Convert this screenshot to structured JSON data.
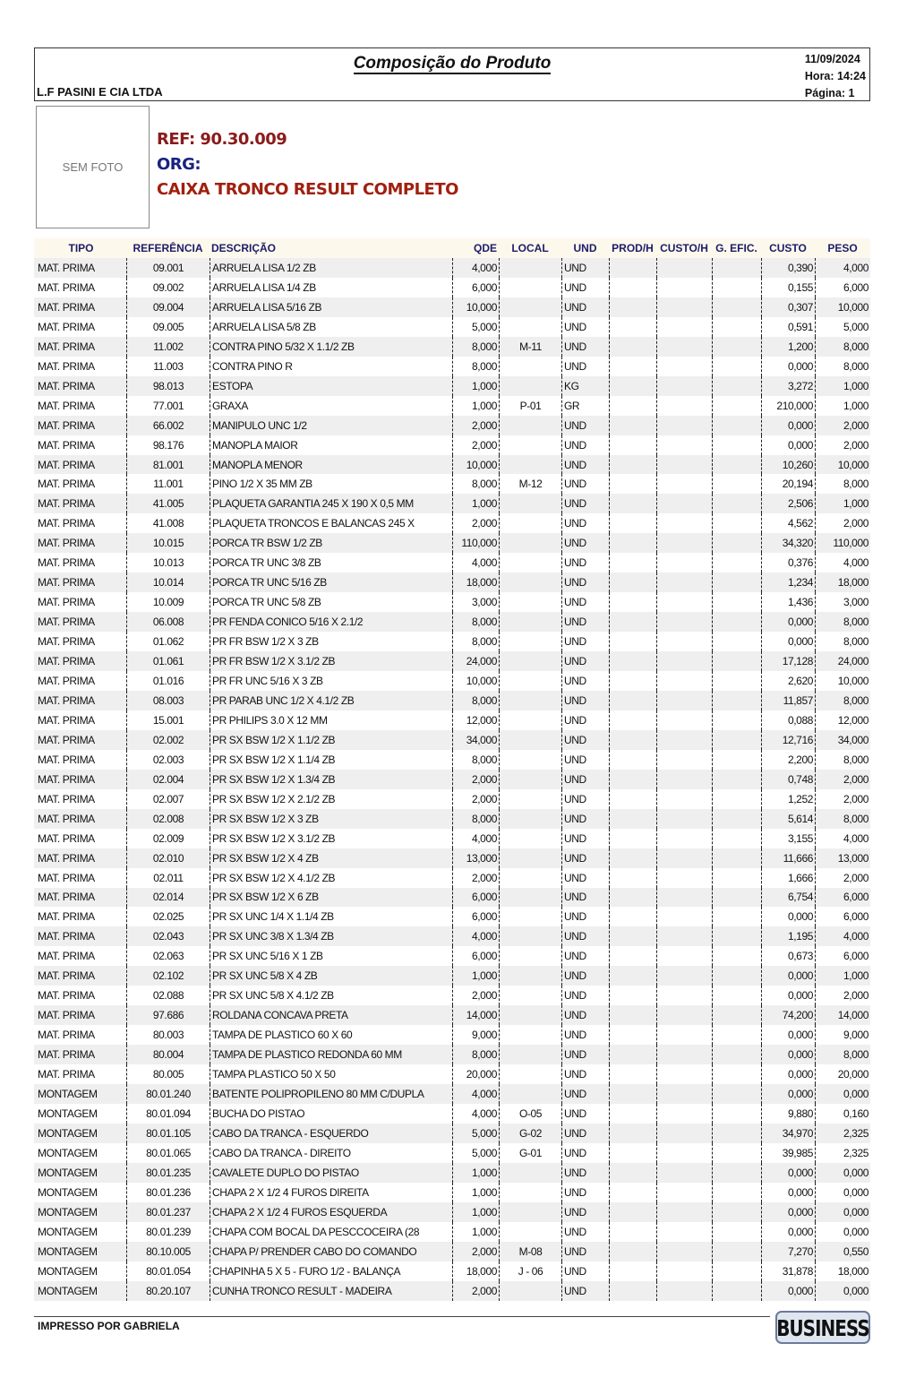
{
  "header": {
    "title": "Composição do Produto",
    "company": "L.F PASINI E CIA LTDA",
    "date": "11/09/2024",
    "time": "Hora: 14:24",
    "page": "Página: 1"
  },
  "product": {
    "photo_placeholder": "SEM FOTO",
    "ref": "REF: 90.30.009",
    "org": "ORG:",
    "name": "CAIXA TRONCO RESULT COMPLETO",
    "colors": {
      "ref": "#8b1a1a",
      "org": "#1a237e",
      "name": "#a0200f"
    }
  },
  "columns": [
    "TIPO",
    "REFERÊNCIA",
    "DESCRIÇÃO",
    "QDE",
    "LOCAL",
    "UND",
    "PROD/H",
    "CUSTO/H",
    "G. EFIC.",
    "CUSTO",
    "PESO"
  ],
  "rows": [
    [
      "MAT. PRIMA",
      "09.001",
      "ARRUELA LISA 1/2 ZB",
      "4,000",
      "",
      "UND",
      "",
      "",
      "",
      "0,390",
      "4,000"
    ],
    [
      "MAT. PRIMA",
      "09.002",
      "ARRUELA LISA 1/4 ZB",
      "6,000",
      "",
      "UND",
      "",
      "",
      "",
      "0,155",
      "6,000"
    ],
    [
      "MAT. PRIMA",
      "09.004",
      "ARRUELA LISA 5/16 ZB",
      "10,000",
      "",
      "UND",
      "",
      "",
      "",
      "0,307",
      "10,000"
    ],
    [
      "MAT. PRIMA",
      "09.005",
      "ARRUELA LISA 5/8 ZB",
      "5,000",
      "",
      "UND",
      "",
      "",
      "",
      "0,591",
      "5,000"
    ],
    [
      "MAT. PRIMA",
      "11.002",
      "CONTRA PINO 5/32 X 1.1/2 ZB",
      "8,000",
      "M-11",
      "UND",
      "",
      "",
      "",
      "1,200",
      "8,000"
    ],
    [
      "MAT. PRIMA",
      "11.003",
      "CONTRA PINO R",
      "8,000",
      "",
      "UND",
      "",
      "",
      "",
      "0,000",
      "8,000"
    ],
    [
      "MAT. PRIMA",
      "98.013",
      "ESTOPA",
      "1,000",
      "",
      "KG",
      "",
      "",
      "",
      "3,272",
      "1,000"
    ],
    [
      "MAT. PRIMA",
      "77.001",
      "GRAXA",
      "1,000",
      "P-01",
      "GR",
      "",
      "",
      "",
      "210,000",
      "1,000"
    ],
    [
      "MAT. PRIMA",
      "66.002",
      "MANIPULO UNC 1/2",
      "2,000",
      "",
      "UND",
      "",
      "",
      "",
      "0,000",
      "2,000"
    ],
    [
      "MAT. PRIMA",
      "98.176",
      "MANOPLA MAIOR",
      "2,000",
      "",
      "UND",
      "",
      "",
      "",
      "0,000",
      "2,000"
    ],
    [
      "MAT. PRIMA",
      "81.001",
      "MANOPLA MENOR",
      "10,000",
      "",
      "UND",
      "",
      "",
      "",
      "10,260",
      "10,000"
    ],
    [
      "MAT. PRIMA",
      "11.001",
      "PINO 1/2 X 35 MM ZB",
      "8,000",
      "M-12",
      "UND",
      "",
      "",
      "",
      "20,194",
      "8,000"
    ],
    [
      "MAT. PRIMA",
      "41.005",
      "PLAQUETA GARANTIA 245 X 190 X 0,5 MM",
      "1,000",
      "",
      "UND",
      "",
      "",
      "",
      "2,506",
      "1,000"
    ],
    [
      "MAT. PRIMA",
      "41.008",
      "PLAQUETA TRONCOS E BALANCAS 245 X",
      "2,000",
      "",
      "UND",
      "",
      "",
      "",
      "4,562",
      "2,000"
    ],
    [
      "MAT. PRIMA",
      "10.015",
      "PORCA TR BSW 1/2 ZB",
      "110,000",
      "",
      "UND",
      "",
      "",
      "",
      "34,320",
      "110,000"
    ],
    [
      "MAT. PRIMA",
      "10.013",
      "PORCA TR UNC 3/8 ZB",
      "4,000",
      "",
      "UND",
      "",
      "",
      "",
      "0,376",
      "4,000"
    ],
    [
      "MAT. PRIMA",
      "10.014",
      "PORCA TR UNC 5/16 ZB",
      "18,000",
      "",
      "UND",
      "",
      "",
      "",
      "1,234",
      "18,000"
    ],
    [
      "MAT. PRIMA",
      "10.009",
      "PORCA TR UNC 5/8 ZB",
      "3,000",
      "",
      "UND",
      "",
      "",
      "",
      "1,436",
      "3,000"
    ],
    [
      "MAT. PRIMA",
      "06.008",
      "PR FENDA CONICO 5/16 X 2.1/2",
      "8,000",
      "",
      "UND",
      "",
      "",
      "",
      "0,000",
      "8,000"
    ],
    [
      "MAT. PRIMA",
      "01.062",
      "PR FR BSW 1/2 X 3 ZB",
      "8,000",
      "",
      "UND",
      "",
      "",
      "",
      "0,000",
      "8,000"
    ],
    [
      "MAT. PRIMA",
      "01.061",
      "PR FR BSW 1/2 X 3.1/2 ZB",
      "24,000",
      "",
      "UND",
      "",
      "",
      "",
      "17,128",
      "24,000"
    ],
    [
      "MAT. PRIMA",
      "01.016",
      "PR FR UNC 5/16 X 3 ZB",
      "10,000",
      "",
      "UND",
      "",
      "",
      "",
      "2,620",
      "10,000"
    ],
    [
      "MAT. PRIMA",
      "08.003",
      "PR PARAB UNC 1/2 X 4.1/2 ZB",
      "8,000",
      "",
      "UND",
      "",
      "",
      "",
      "11,857",
      "8,000"
    ],
    [
      "MAT. PRIMA",
      "15.001",
      "PR PHILIPS 3.0 X 12 MM",
      "12,000",
      "",
      "UND",
      "",
      "",
      "",
      "0,088",
      "12,000"
    ],
    [
      "MAT. PRIMA",
      "02.002",
      "PR SX BSW 1/2 X 1.1/2 ZB",
      "34,000",
      "",
      "UND",
      "",
      "",
      "",
      "12,716",
      "34,000"
    ],
    [
      "MAT. PRIMA",
      "02.003",
      "PR SX BSW 1/2 X 1.1/4 ZB",
      "8,000",
      "",
      "UND",
      "",
      "",
      "",
      "2,200",
      "8,000"
    ],
    [
      "MAT. PRIMA",
      "02.004",
      "PR SX BSW 1/2 X 1.3/4 ZB",
      "2,000",
      "",
      "UND",
      "",
      "",
      "",
      "0,748",
      "2,000"
    ],
    [
      "MAT. PRIMA",
      "02.007",
      "PR SX BSW 1/2 X 2.1/2 ZB",
      "2,000",
      "",
      "UND",
      "",
      "",
      "",
      "1,252",
      "2,000"
    ],
    [
      "MAT. PRIMA",
      "02.008",
      "PR SX BSW 1/2 X 3 ZB",
      "8,000",
      "",
      "UND",
      "",
      "",
      "",
      "5,614",
      "8,000"
    ],
    [
      "MAT. PRIMA",
      "02.009",
      "PR SX BSW 1/2 X 3.1/2 ZB",
      "4,000",
      "",
      "UND",
      "",
      "",
      "",
      "3,155",
      "4,000"
    ],
    [
      "MAT. PRIMA",
      "02.010",
      "PR SX BSW 1/2 X 4 ZB",
      "13,000",
      "",
      "UND",
      "",
      "",
      "",
      "11,666",
      "13,000"
    ],
    [
      "MAT. PRIMA",
      "02.011",
      "PR SX BSW 1/2 X 4.1/2 ZB",
      "2,000",
      "",
      "UND",
      "",
      "",
      "",
      "1,666",
      "2,000"
    ],
    [
      "MAT. PRIMA",
      "02.014",
      "PR SX BSW 1/2 X 6 ZB",
      "6,000",
      "",
      "UND",
      "",
      "",
      "",
      "6,754",
      "6,000"
    ],
    [
      "MAT. PRIMA",
      "02.025",
      "PR SX UNC 1/4 X 1.1/4 ZB",
      "6,000",
      "",
      "UND",
      "",
      "",
      "",
      "0,000",
      "6,000"
    ],
    [
      "MAT. PRIMA",
      "02.043",
      "PR SX UNC 3/8 X 1.3/4 ZB",
      "4,000",
      "",
      "UND",
      "",
      "",
      "",
      "1,195",
      "4,000"
    ],
    [
      "MAT. PRIMA",
      "02.063",
      "PR SX UNC 5/16 X 1 ZB",
      "6,000",
      "",
      "UND",
      "",
      "",
      "",
      "0,673",
      "6,000"
    ],
    [
      "MAT. PRIMA",
      "02.102",
      "PR SX UNC 5/8 X 4 ZB",
      "1,000",
      "",
      "UND",
      "",
      "",
      "",
      "0,000",
      "1,000"
    ],
    [
      "MAT. PRIMA",
      "02.088",
      "PR SX UNC 5/8 X 4.1/2 ZB",
      "2,000",
      "",
      "UND",
      "",
      "",
      "",
      "0,000",
      "2,000"
    ],
    [
      "MAT. PRIMA",
      "97.686",
      "ROLDANA CONCAVA PRETA",
      "14,000",
      "",
      "UND",
      "",
      "",
      "",
      "74,200",
      "14,000"
    ],
    [
      "MAT. PRIMA",
      "80.003",
      "TAMPA DE PLASTICO 60 X 60",
      "9,000",
      "",
      "UND",
      "",
      "",
      "",
      "0,000",
      "9,000"
    ],
    [
      "MAT. PRIMA",
      "80.004",
      "TAMPA DE PLASTICO REDONDA 60 MM",
      "8,000",
      "",
      "UND",
      "",
      "",
      "",
      "0,000",
      "8,000"
    ],
    [
      "MAT. PRIMA",
      "80.005",
      "TAMPA PLASTICO 50  X 50",
      "20,000",
      "",
      "UND",
      "",
      "",
      "",
      "0,000",
      "20,000"
    ],
    [
      "MONTAGEM",
      "80.01.240",
      "BATENTE POLIPROPILENO 80 MM C/DUPLA",
      "4,000",
      "",
      "UND",
      "",
      "",
      "",
      "0,000",
      "0,000"
    ],
    [
      "MONTAGEM",
      "80.01.094",
      "BUCHA DO PISTAO",
      "4,000",
      "O-05",
      "UND",
      "",
      "",
      "",
      "9,880",
      "0,160"
    ],
    [
      "MONTAGEM",
      "80.01.105",
      "CABO DA TRANCA  - ESQUERDO",
      "5,000",
      "G-02",
      "UND",
      "",
      "",
      "",
      "34,970",
      "2,325"
    ],
    [
      "MONTAGEM",
      "80.01.065",
      "CABO DA TRANCA -  DIREITO",
      "5,000",
      "G-01",
      "UND",
      "",
      "",
      "",
      "39,985",
      "2,325"
    ],
    [
      "MONTAGEM",
      "80.01.235",
      "CAVALETE DUPLO DO PISTAO",
      "1,000",
      "",
      "UND",
      "",
      "",
      "",
      "0,000",
      "0,000"
    ],
    [
      "MONTAGEM",
      "80.01.236",
      "CHAPA 2 X 1/2 4 FUROS DIREITA",
      "1,000",
      "",
      "UND",
      "",
      "",
      "",
      "0,000",
      "0,000"
    ],
    [
      "MONTAGEM",
      "80.01.237",
      "CHAPA 2 X 1/2 4 FUROS ESQUERDA",
      "1,000",
      "",
      "UND",
      "",
      "",
      "",
      "0,000",
      "0,000"
    ],
    [
      "MONTAGEM",
      "80.01.239",
      "CHAPA COM BOCAL DA PESCCOCEIRA (28",
      "1,000",
      "",
      "UND",
      "",
      "",
      "",
      "0,000",
      "0,000"
    ],
    [
      "MONTAGEM",
      "80.10.005",
      "CHAPA P/ PRENDER CABO DO COMANDO",
      "2,000",
      "M-08",
      "UND",
      "",
      "",
      "",
      "7,270",
      "0,550"
    ],
    [
      "MONTAGEM",
      "80.01.054",
      "CHAPINHA 5 X 5 - FURO 1/2 - BALANÇA",
      "18,000",
      "J - 06",
      "UND",
      "",
      "",
      "",
      "31,878",
      "18,000"
    ],
    [
      "MONTAGEM",
      "80.20.107",
      "CUNHA TRONCO RESULT - MADEIRA",
      "2,000",
      "",
      "UND",
      "",
      "",
      "",
      "0,000",
      "0,000"
    ]
  ],
  "footer": {
    "printed_by": "IMPRESSO POR GABRIELA",
    "logo_text": "BUSINESS"
  }
}
